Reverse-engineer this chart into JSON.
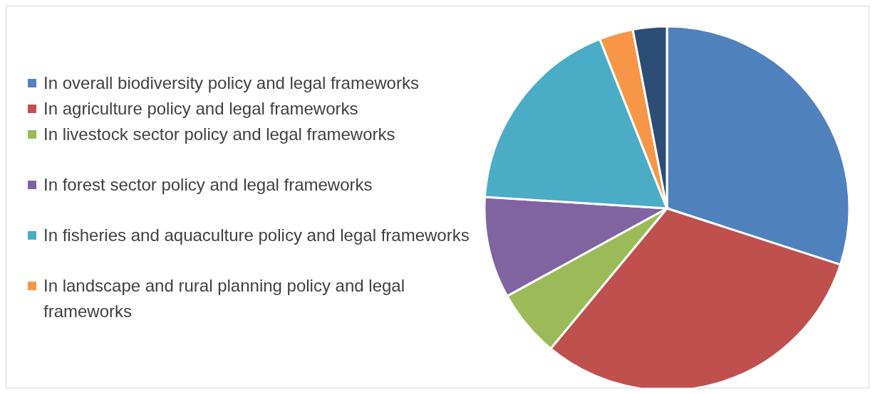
{
  "chart_data": {
    "type": "pie",
    "legend": "left",
    "categories": [
      "In overall biodiversity policy and legal frameworks",
      "In agriculture policy and legal frameworks",
      "In livestock sector policy and legal frameworks",
      "In forest sector policy and legal frameworks",
      "In fisheries and aquaculture policy and legal frameworks",
      "In landscape and rural planning policy and legal frameworks",
      null
    ],
    "values": [
      30,
      31,
      6,
      9,
      18,
      3,
      3
    ],
    "colors": [
      "#4f81bd",
      "#c0504d",
      "#9bbb59",
      "#8064a2",
      "#4bacc6",
      "#f79646",
      "#2c4d75"
    ]
  }
}
